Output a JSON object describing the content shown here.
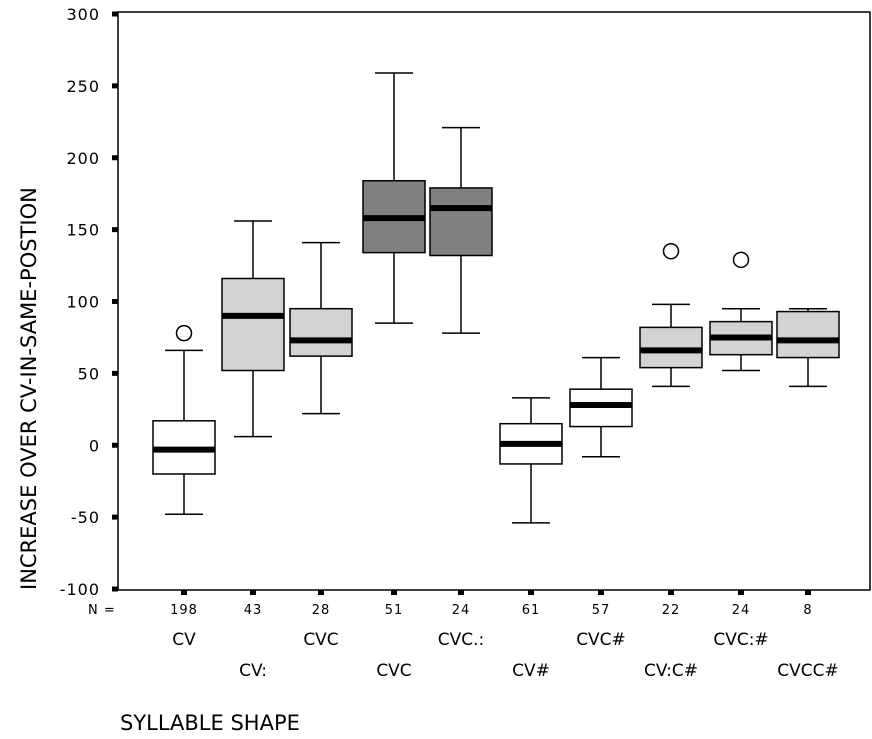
{
  "chart_data": {
    "type": "boxplot",
    "xlabel": "SYLLABLE SHAPE",
    "ylabel": "INCREASE OVER CV-IN-SAME-POSTION",
    "ylim": [
      -100,
      300
    ],
    "yticks": [
      -100,
      -50,
      0,
      50,
      100,
      150,
      200,
      250,
      300
    ],
    "n_prefix": "N =",
    "categories": [
      {
        "label": "CV",
        "n": "198",
        "row": 0,
        "fill": "#ffffff",
        "min": -48,
        "q1": -20,
        "median": -3,
        "q3": 17,
        "max": 66,
        "outliers": [
          78
        ]
      },
      {
        "label": "CV:",
        "n": "43",
        "row": 1,
        "fill": "#d3d3d3",
        "min": 6,
        "q1": 52,
        "median": 90,
        "q3": 116,
        "max": 156,
        "outliers": []
      },
      {
        "label": "CVC",
        "n": "28",
        "row": 0,
        "fill": "#d3d3d3",
        "min": 22,
        "q1": 62,
        "median": 73,
        "q3": 95,
        "max": 141,
        "outliers": []
      },
      {
        "label": "CVC",
        "n": "51",
        "row": 1,
        "fill": "#808080",
        "min": 85,
        "q1": 134,
        "median": 158,
        "q3": 184,
        "max": 259,
        "outliers": []
      },
      {
        "label": "CVC.:",
        "n": "24",
        "row": 0,
        "fill": "#808080",
        "min": 78,
        "q1": 132,
        "median": 165,
        "q3": 179,
        "max": 221,
        "outliers": []
      },
      {
        "label": "CV#",
        "n": "61",
        "row": 1,
        "fill": "#ffffff",
        "min": -54,
        "q1": -13,
        "median": 1,
        "q3": 15,
        "max": 33,
        "outliers": []
      },
      {
        "label": "CVC#",
        "n": "57",
        "row": 0,
        "fill": "#ffffff",
        "min": -8,
        "q1": 13,
        "median": 28,
        "q3": 39,
        "max": 61,
        "outliers": []
      },
      {
        "label": "CV:C#",
        "n": "22",
        "row": 1,
        "fill": "#d3d3d3",
        "min": 41,
        "q1": 54,
        "median": 66,
        "q3": 82,
        "max": 98,
        "outliers": [
          135
        ]
      },
      {
        "label": "CVC:#",
        "n": "24",
        "row": 0,
        "fill": "#d3d3d3",
        "min": 52,
        "q1": 63,
        "median": 75,
        "q3": 86,
        "max": 95,
        "outliers": [
          129
        ]
      },
      {
        "label": "CVCC#",
        "n": "8",
        "row": 1,
        "fill": "#d3d3d3",
        "min": 41,
        "q1": 61,
        "median": 73,
        "q3": 93,
        "max": 95,
        "outliers": []
      }
    ]
  }
}
